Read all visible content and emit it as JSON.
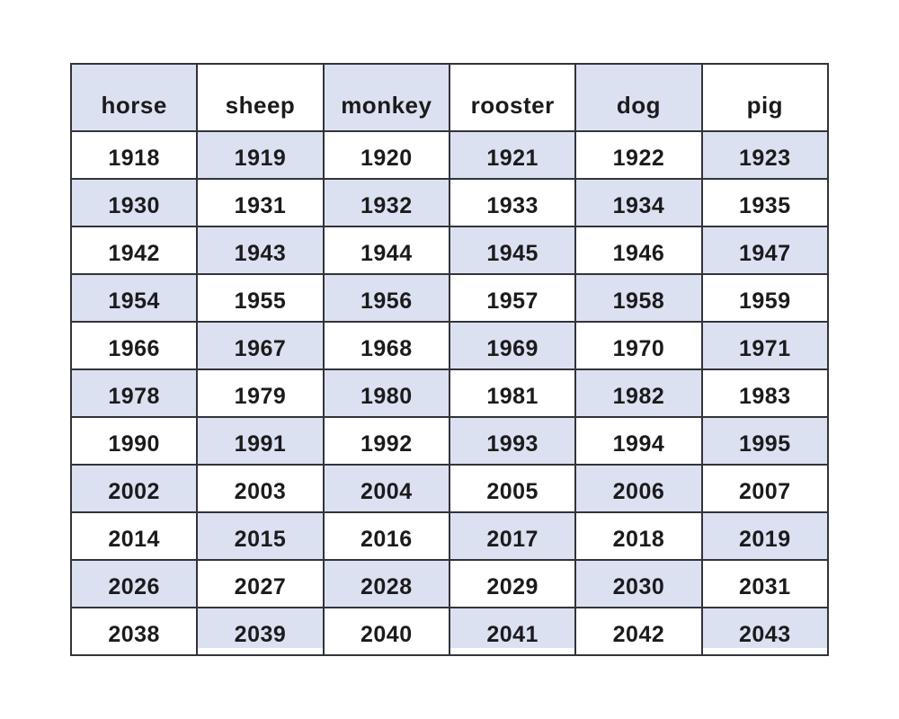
{
  "page": {
    "background_color": "#ffffff"
  },
  "table": {
    "title": "chinese-zodiac-years",
    "columns": [
      "horse",
      "sheep",
      "monkey",
      "rooster",
      "dog",
      "pig"
    ],
    "rows": [
      [
        "1918",
        "1919",
        "1920",
        "1921",
        "1922",
        "1923"
      ],
      [
        "1930",
        "1931",
        "1932",
        "1933",
        "1934",
        "1935"
      ],
      [
        "1942",
        "1943",
        "1944",
        "1945",
        "1946",
        "1947"
      ],
      [
        "1954",
        "1955",
        "1956",
        "1957",
        "1958",
        "1959"
      ],
      [
        "1966",
        "1967",
        "1968",
        "1969",
        "1970",
        "1971"
      ],
      [
        "1978",
        "1979",
        "1980",
        "1981",
        "1982",
        "1983"
      ],
      [
        "1990",
        "1991",
        "1992",
        "1993",
        "1994",
        "1995"
      ],
      [
        "2002",
        "2003",
        "2004",
        "2005",
        "2006",
        "2007"
      ],
      [
        "2014",
        "2015",
        "2016",
        "2017",
        "2018",
        "2019"
      ],
      [
        "2026",
        "2027",
        "2028",
        "2029",
        "2030",
        "2031"
      ],
      [
        "2038",
        "2039",
        "2040",
        "2041",
        "2042",
        "2043"
      ]
    ],
    "colors": {
      "cell_shade": "#dce1f1",
      "cell_white": "#ffffff",
      "grid_border": "#32343a",
      "text": "#1b1b1d"
    }
  }
}
